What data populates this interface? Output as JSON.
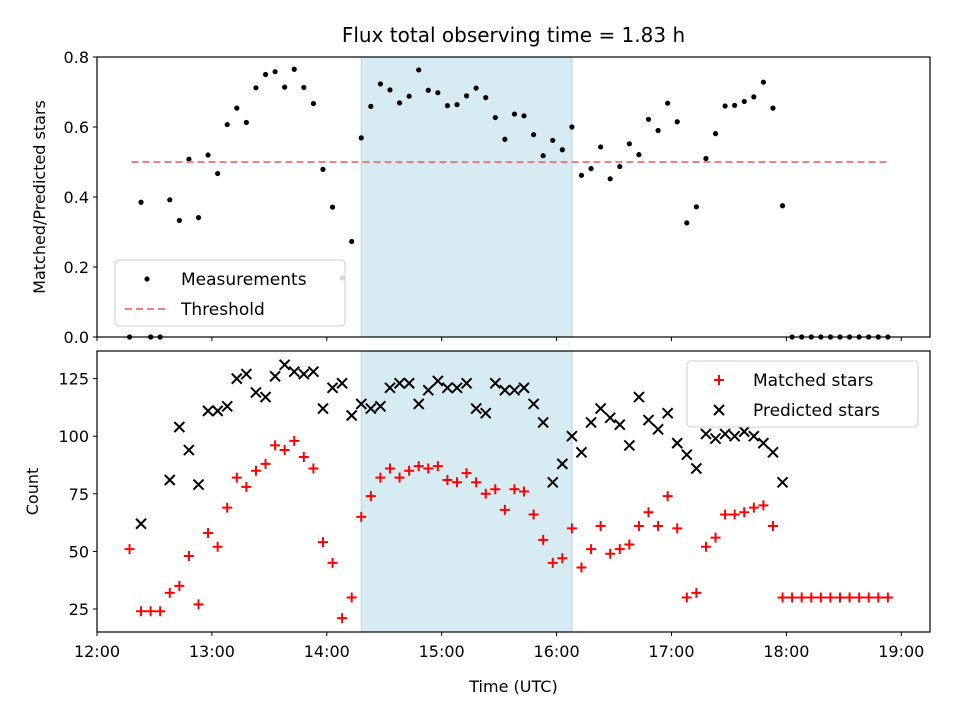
{
  "chart_data": [
    {
      "type": "scatter",
      "title": "Flux total observing time = 1.83 h",
      "ylabel": "Matched/Predicted stars",
      "xlabel": "",
      "xlim": [
        "12:00",
        "19:15"
      ],
      "ylim": [
        0,
        0.8
      ],
      "yticks": [
        "0.0",
        "0.2",
        "0.4",
        "0.6",
        "0.8"
      ],
      "legend_position": "lower-left",
      "highlight_span": [
        "14:18",
        "16:08"
      ],
      "series": [
        {
          "name": "Measurements",
          "marker": "dot",
          "color": "#000000",
          "points": [
            [
              "12:17",
              0.0
            ],
            [
              "12:23",
              0.385
            ],
            [
              "12:28",
              0.0
            ],
            [
              "12:33",
              0.0
            ],
            [
              "12:38",
              0.392
            ],
            [
              "12:43",
              0.333
            ],
            [
              "12:48",
              0.508
            ],
            [
              "12:53",
              0.341
            ],
            [
              "12:58",
              0.52
            ],
            [
              "13:03",
              0.467
            ],
            [
              "13:08",
              0.607
            ],
            [
              "13:13",
              0.654
            ],
            [
              "13:18",
              0.613
            ],
            [
              "13:23",
              0.712
            ],
            [
              "13:28",
              0.75
            ],
            [
              "13:33",
              0.758
            ],
            [
              "13:38",
              0.714
            ],
            [
              "13:43",
              0.765
            ],
            [
              "13:48",
              0.713
            ],
            [
              "13:53",
              0.667
            ],
            [
              "13:58",
              0.479
            ],
            [
              "14:03",
              0.371
            ],
            [
              "14:08",
              0.169
            ],
            [
              "14:13",
              0.273
            ],
            [
              "14:18",
              0.569
            ],
            [
              "14:23",
              0.659
            ],
            [
              "14:28",
              0.723
            ],
            [
              "14:33",
              0.706
            ],
            [
              "14:38",
              0.669
            ],
            [
              "14:43",
              0.688
            ],
            [
              "14:48",
              0.763
            ],
            [
              "14:53",
              0.705
            ],
            [
              "14:58",
              0.698
            ],
            [
              "15:03",
              0.661
            ],
            [
              "15:08",
              0.664
            ],
            [
              "15:13",
              0.689
            ],
            [
              "15:18",
              0.711
            ],
            [
              "15:23",
              0.684
            ],
            [
              "15:28",
              0.627
            ],
            [
              "15:33",
              0.565
            ],
            [
              "15:38",
              0.637
            ],
            [
              "15:43",
              0.632
            ],
            [
              "15:48",
              0.578
            ],
            [
              "15:53",
              0.518
            ],
            [
              "15:58",
              0.562
            ],
            [
              "16:03",
              0.535
            ],
            [
              "16:08",
              0.6
            ],
            [
              "16:13",
              0.462
            ],
            [
              "16:18",
              0.481
            ],
            [
              "16:23",
              0.543
            ],
            [
              "16:28",
              0.452
            ],
            [
              "16:33",
              0.487
            ],
            [
              "16:38",
              0.552
            ],
            [
              "16:43",
              0.521
            ],
            [
              "16:48",
              0.622
            ],
            [
              "16:53",
              0.59
            ],
            [
              "16:58",
              0.668
            ],
            [
              "17:03",
              0.615
            ],
            [
              "17:08",
              0.326
            ],
            [
              "17:13",
              0.372
            ],
            [
              "17:18",
              0.51
            ],
            [
              "17:23",
              0.581
            ],
            [
              "17:28",
              0.66
            ],
            [
              "17:33",
              0.662
            ],
            [
              "17:38",
              0.673
            ],
            [
              "17:43",
              0.686
            ],
            [
              "17:48",
              0.728
            ],
            [
              "17:53",
              0.654
            ],
            [
              "17:58",
              0.375
            ],
            [
              "18:03",
              0.0
            ],
            [
              "18:08",
              0.0
            ],
            [
              "18:13",
              0.0
            ],
            [
              "18:18",
              0.0
            ],
            [
              "18:23",
              0.0
            ],
            [
              "18:28",
              0.0
            ],
            [
              "18:33",
              0.0
            ],
            [
              "18:38",
              0.0
            ],
            [
              "18:43",
              0.0
            ],
            [
              "18:48",
              0.0
            ],
            [
              "18:53",
              0.0
            ]
          ]
        },
        {
          "name": "Threshold",
          "style": "dashed-line",
          "color": "#f08080",
          "points": [
            [
              "12:18",
              0.5
            ],
            [
              "18:53",
              0.5
            ]
          ]
        }
      ]
    },
    {
      "type": "scatter",
      "title": "",
      "ylabel": "Count",
      "xlabel": "Time (UTC)",
      "xlim": [
        "12:00",
        "19:15"
      ],
      "ylim": [
        15,
        137
      ],
      "yticks": [
        "25",
        "50",
        "75",
        "100",
        "125"
      ],
      "xticks": [
        "12:00",
        "13:00",
        "14:00",
        "15:00",
        "16:00",
        "17:00",
        "18:00",
        "19:00"
      ],
      "legend_position": "upper-right",
      "highlight_span": [
        "14:18",
        "16:08"
      ],
      "series": [
        {
          "name": "Matched stars",
          "marker": "plus",
          "color": "#ff0000",
          "points": [
            [
              "12:17",
              51
            ],
            [
              "12:23",
              24
            ],
            [
              "12:28",
              24
            ],
            [
              "12:33",
              24
            ],
            [
              "12:38",
              32
            ],
            [
              "12:43",
              35
            ],
            [
              "12:48",
              48
            ],
            [
              "12:53",
              27
            ],
            [
              "12:58",
              58
            ],
            [
              "13:03",
              52
            ],
            [
              "13:08",
              69
            ],
            [
              "13:13",
              82
            ],
            [
              "13:18",
              78
            ],
            [
              "13:23",
              85
            ],
            [
              "13:28",
              88
            ],
            [
              "13:33",
              96
            ],
            [
              "13:38",
              94
            ],
            [
              "13:43",
              98
            ],
            [
              "13:48",
              91
            ],
            [
              "13:53",
              86
            ],
            [
              "13:58",
              54
            ],
            [
              "14:03",
              45
            ],
            [
              "14:08",
              21
            ],
            [
              "14:13",
              30
            ],
            [
              "14:18",
              65
            ],
            [
              "14:23",
              74
            ],
            [
              "14:28",
              82
            ],
            [
              "14:33",
              86
            ],
            [
              "14:38",
              82
            ],
            [
              "14:43",
              85
            ],
            [
              "14:48",
              87
            ],
            [
              "14:53",
              86
            ],
            [
              "14:58",
              87
            ],
            [
              "15:03",
              81
            ],
            [
              "15:08",
              80
            ],
            [
              "15:13",
              84
            ],
            [
              "15:18",
              80
            ],
            [
              "15:23",
              75
            ],
            [
              "15:28",
              77
            ],
            [
              "15:33",
              68
            ],
            [
              "15:38",
              77
            ],
            [
              "15:43",
              76
            ],
            [
              "15:48",
              66
            ],
            [
              "15:53",
              55
            ],
            [
              "15:58",
              45
            ],
            [
              "16:03",
              47
            ],
            [
              "16:08",
              60
            ],
            [
              "16:13",
              43
            ],
            [
              "16:18",
              51
            ],
            [
              "16:23",
              61
            ],
            [
              "16:28",
              49
            ],
            [
              "16:33",
              51
            ],
            [
              "16:38",
              53
            ],
            [
              "16:43",
              61
            ],
            [
              "16:48",
              67
            ],
            [
              "16:53",
              61
            ],
            [
              "16:58",
              74
            ],
            [
              "17:03",
              60
            ],
            [
              "17:08",
              30
            ],
            [
              "17:13",
              32
            ],
            [
              "17:18",
              52
            ],
            [
              "17:23",
              56
            ],
            [
              "17:28",
              66
            ],
            [
              "17:33",
              66
            ],
            [
              "17:38",
              67
            ],
            [
              "17:43",
              69
            ],
            [
              "17:48",
              70
            ],
            [
              "17:53",
              61
            ],
            [
              "17:58",
              30
            ],
            [
              "18:03",
              30
            ],
            [
              "18:08",
              30
            ],
            [
              "18:13",
              30
            ],
            [
              "18:18",
              30
            ],
            [
              "18:23",
              30
            ],
            [
              "18:28",
              30
            ],
            [
              "18:33",
              30
            ],
            [
              "18:38",
              30
            ],
            [
              "18:43",
              30
            ],
            [
              "18:48",
              30
            ],
            [
              "18:53",
              30
            ]
          ]
        },
        {
          "name": "Predicted stars",
          "marker": "x",
          "color": "#000000",
          "points": [
            [
              "12:23",
              62
            ],
            [
              "12:38",
              81
            ],
            [
              "12:43",
              104
            ],
            [
              "12:48",
              94
            ],
            [
              "12:53",
              79
            ],
            [
              "12:58",
              111
            ],
            [
              "13:03",
              111
            ],
            [
              "13:08",
              113
            ],
            [
              "13:13",
              125
            ],
            [
              "13:18",
              127
            ],
            [
              "13:23",
              119
            ],
            [
              "13:28",
              117
            ],
            [
              "13:33",
              126
            ],
            [
              "13:38",
              131
            ],
            [
              "13:43",
              128
            ],
            [
              "13:48",
              127
            ],
            [
              "13:53",
              128
            ],
            [
              "13:58",
              112
            ],
            [
              "14:03",
              121
            ],
            [
              "14:08",
              123
            ],
            [
              "14:13",
              109
            ],
            [
              "14:18",
              114
            ],
            [
              "14:23",
              112
            ],
            [
              "14:28",
              113
            ],
            [
              "14:33",
              121
            ],
            [
              "14:38",
              123
            ],
            [
              "14:43",
              123
            ],
            [
              "14:48",
              114
            ],
            [
              "14:53",
              120
            ],
            [
              "14:58",
              124
            ],
            [
              "15:03",
              121
            ],
            [
              "15:08",
              121
            ],
            [
              "15:13",
              123
            ],
            [
              "15:18",
              112
            ],
            [
              "15:23",
              110
            ],
            [
              "15:28",
              123
            ],
            [
              "15:33",
              120
            ],
            [
              "15:38",
              120
            ],
            [
              "15:43",
              121
            ],
            [
              "15:48",
              114
            ],
            [
              "15:53",
              106
            ],
            [
              "15:58",
              80
            ],
            [
              "16:03",
              88
            ],
            [
              "16:08",
              100
            ],
            [
              "16:13",
              93
            ],
            [
              "16:18",
              106
            ],
            [
              "16:23",
              112
            ],
            [
              "16:28",
              108
            ],
            [
              "16:33",
              105
            ],
            [
              "16:38",
              96
            ],
            [
              "16:43",
              117
            ],
            [
              "16:48",
              107
            ],
            [
              "16:53",
              103
            ],
            [
              "16:58",
              110
            ],
            [
              "17:03",
              97
            ],
            [
              "17:08",
              92
            ],
            [
              "17:13",
              86
            ],
            [
              "17:18",
              101
            ],
            [
              "17:23",
              99
            ],
            [
              "17:28",
              101
            ],
            [
              "17:33",
              100
            ],
            [
              "17:38",
              102
            ],
            [
              "17:43",
              100
            ],
            [
              "17:48",
              97
            ],
            [
              "17:53",
              93
            ],
            [
              "17:58",
              80
            ]
          ]
        }
      ]
    }
  ]
}
